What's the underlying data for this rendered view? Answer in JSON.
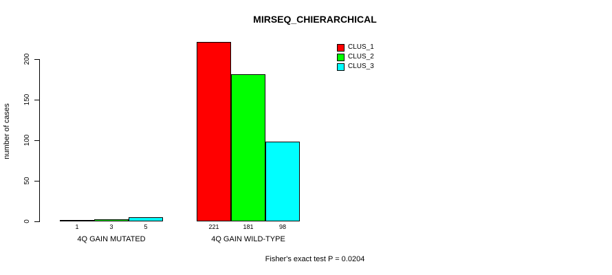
{
  "chart_data": {
    "type": "bar",
    "title": "MIRSEQ_CHIERARCHICAL",
    "xlabel": "",
    "ylabel": "number of cases",
    "ylim": [
      0,
      200
    ],
    "yticks": [
      0,
      50,
      100,
      150,
      200
    ],
    "grid": false,
    "legend_position": "top-right",
    "categories": [
      "4Q GAIN MUTATED",
      "4Q GAIN WILD-TYPE"
    ],
    "series": [
      {
        "name": "CLUS_1",
        "color": "#FF0000",
        "values": [
          1,
          221
        ]
      },
      {
        "name": "CLUS_2",
        "color": "#00FF00",
        "values": [
          3,
          181
        ]
      },
      {
        "name": "CLUS_3",
        "color": "#00FFFF",
        "values": [
          5,
          98
        ]
      }
    ],
    "bar_value_labels_shown": true,
    "annotation": "Fisher's exact test P = 0.0204"
  },
  "colors": {
    "background": "#FFFFFF",
    "axis": "#000000",
    "text": "#000000"
  }
}
